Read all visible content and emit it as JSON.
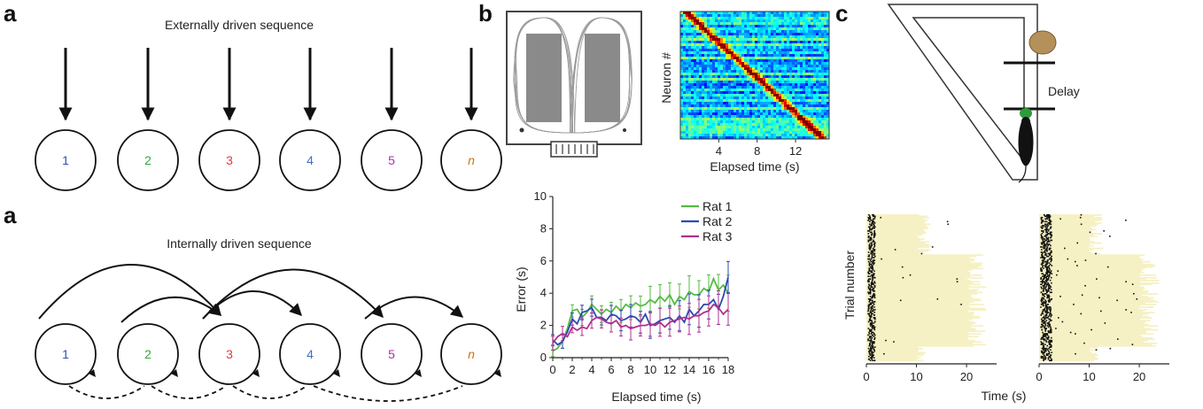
{
  "panel_a": {
    "letter_top": "a",
    "letter_bottom": "a",
    "external_title": "Externally driven sequence",
    "internal_title": "Internally driven sequence",
    "nodes": [
      {
        "label": "1",
        "color": "#2b4fb5"
      },
      {
        "label": "2",
        "color": "#2fa83a"
      },
      {
        "label": "3",
        "color": "#e03a3a"
      },
      {
        "label": "4",
        "color": "#3a6fc8"
      },
      {
        "label": "5",
        "color": "#b030b0"
      },
      {
        "label": "n",
        "color": "#d0701a"
      }
    ]
  },
  "panel_b": {
    "letter": "b",
    "heatmap": {
      "ylabel": "Neuron #",
      "xlabel": "Elapsed time (s)",
      "xticks": [
        "4",
        "8",
        "12"
      ]
    },
    "chart_data": {
      "type": "line",
      "xlabel": "Elapsed time (s)",
      "ylabel": "Error (s)",
      "xlim": [
        0,
        18
      ],
      "ylim": [
        0,
        10
      ],
      "xticks": [
        "0",
        "2",
        "4",
        "6",
        "8",
        "10",
        "12",
        "14",
        "16",
        "18"
      ],
      "yticks": [
        "0",
        "2",
        "4",
        "6",
        "8",
        "10"
      ],
      "legend_position": "top-right",
      "x": [
        0,
        0.5,
        1,
        1.5,
        2,
        2.5,
        3,
        3.5,
        4,
        4.5,
        5,
        5.5,
        6,
        6.5,
        7,
        7.5,
        8,
        8.5,
        9,
        9.5,
        10,
        10.5,
        11,
        11.5,
        12,
        12.5,
        13,
        13.5,
        14,
        14.5,
        15,
        15.5,
        16,
        16.5,
        17,
        17.5,
        18
      ],
      "series": [
        {
          "name": "Rat 1",
          "color": "#55bb44",
          "values": [
            0.4,
            0.6,
            1.0,
            1.8,
            2.9,
            3.0,
            2.5,
            2.8,
            3.3,
            3.0,
            2.7,
            3.0,
            2.8,
            3.2,
            2.9,
            3.3,
            3.1,
            3.4,
            3.2,
            3.3,
            3.6,
            3.4,
            3.8,
            3.5,
            3.9,
            3.3,
            3.8,
            3.6,
            4.1,
            3.9,
            3.9,
            4.3,
            4.1,
            4.9,
            4.2,
            4.5,
            4.0
          ]
        },
        {
          "name": "Rat 2",
          "color": "#2b4bb0",
          "values": [
            1.1,
            0.8,
            1.0,
            1.6,
            2.4,
            2.1,
            2.8,
            2.9,
            3.1,
            2.5,
            2.5,
            2.3,
            2.7,
            2.6,
            2.3,
            2.4,
            2.6,
            2.5,
            2.2,
            2.7,
            2.0,
            2.1,
            2.3,
            2.4,
            2.5,
            2.2,
            2.6,
            2.2,
            3.0,
            2.6,
            2.9,
            3.3,
            3.3,
            3.6,
            3.0,
            3.8,
            5.0
          ]
        },
        {
          "name": "Rat 3",
          "color": "#b0308f",
          "values": [
            0.9,
            1.3,
            1.5,
            1.3,
            1.9,
            1.7,
            1.9,
            1.8,
            2.3,
            2.5,
            2.4,
            2.2,
            2.1,
            2.3,
            1.9,
            2.0,
            1.8,
            1.9,
            2.0,
            2.0,
            2.1,
            2.0,
            2.2,
            1.9,
            2.2,
            2.3,
            2.4,
            2.5,
            2.4,
            2.6,
            2.6,
            2.8,
            2.9,
            3.3,
            3.1,
            2.7,
            3.0
          ]
        }
      ]
    }
  },
  "panel_c": {
    "letter": "c",
    "delay_label": "Delay",
    "raster": {
      "ylabel": "Trial number",
      "xlabel": "Time (s)",
      "xticks": [
        "0",
        "10",
        "20"
      ]
    }
  }
}
